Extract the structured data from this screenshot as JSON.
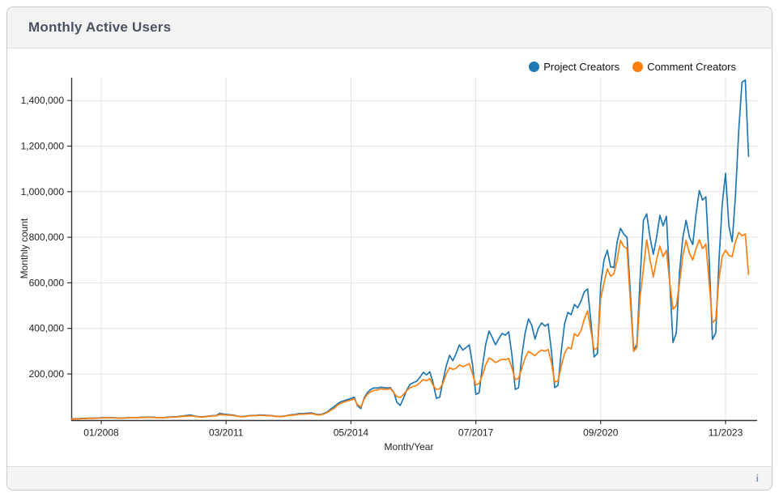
{
  "header": {
    "title": "Monthly Active Users"
  },
  "footer": {
    "info_icon": "i"
  },
  "colors": {
    "accent_blue": "#1f77b4",
    "accent_orange": "#ff7f0e",
    "grid": "#e2e2e2",
    "axis": "#333333",
    "title": "#4a5263",
    "header_bg": "#f3f3f3"
  },
  "chart_data": {
    "type": "line",
    "title": "Monthly Active Users",
    "xlabel": "Month/Year",
    "ylabel": "Monthly count",
    "grid": true,
    "legend_position": "top-right",
    "x_start_month": "2007-04",
    "x_end_month": "2024-06",
    "ylim": [
      0,
      1500000
    ],
    "x_ticks": [
      {
        "label": "01/2008",
        "month_index": 9
      },
      {
        "label": "03/2011",
        "month_index": 47
      },
      {
        "label": "05/2014",
        "month_index": 85
      },
      {
        "label": "07/2017",
        "month_index": 123
      },
      {
        "label": "09/2020",
        "month_index": 161
      },
      {
        "label": "11/2023",
        "month_index": 199
      }
    ],
    "y_ticks": [
      {
        "value": 200000,
        "label": "200,000"
      },
      {
        "value": 400000,
        "label": "400,000"
      },
      {
        "value": 600000,
        "label": "600,000"
      },
      {
        "value": 800000,
        "label": "800,000"
      },
      {
        "value": 1000000,
        "label": "1,000,000"
      },
      {
        "value": 1200000,
        "label": "1,200,000"
      },
      {
        "value": 1400000,
        "label": "1,400,000"
      }
    ],
    "series": [
      {
        "name": "Project Creators",
        "color": "#1f77b4",
        "values": [
          3000,
          4000,
          4000,
          5000,
          5000,
          6000,
          6000,
          7000,
          7000,
          8000,
          8000,
          9000,
          8000,
          8000,
          7000,
          7000,
          7000,
          8000,
          9000,
          9000,
          9000,
          10000,
          10000,
          11000,
          11000,
          10000,
          9000,
          9000,
          9000,
          10000,
          11000,
          12000,
          12000,
          15000,
          16000,
          18000,
          20000,
          17000,
          14000,
          12000,
          12000,
          14000,
          16000,
          17000,
          17000,
          27000,
          25000,
          23000,
          21000,
          20000,
          17000,
          14000,
          13000,
          15000,
          17000,
          18000,
          18000,
          20000,
          20000,
          19000,
          18000,
          17000,
          15000,
          14000,
          14000,
          16000,
          19000,
          21000,
          22000,
          26000,
          26000,
          27000,
          28000,
          29000,
          25000,
          22000,
          23000,
          28000,
          36000,
          48000,
          58000,
          70000,
          79000,
          83000,
          88000,
          92000,
          98000,
          60000,
          48000,
          95000,
          118000,
          132000,
          139000,
          138000,
          142000,
          140000,
          138000,
          140000,
          120000,
          75000,
          62000,
          95000,
          130000,
          155000,
          162000,
          168000,
          185000,
          207000,
          196000,
          210000,
          160000,
          93000,
          98000,
          170000,
          235000,
          282000,
          258000,
          290000,
          328000,
          305000,
          315000,
          328000,
          240000,
          110000,
          118000,
          235000,
          330000,
          388000,
          360000,
          328000,
          355000,
          378000,
          370000,
          385000,
          280000,
          132000,
          140000,
          280000,
          380000,
          441000,
          415000,
          353000,
          400000,
          424000,
          410000,
          420000,
          300000,
          140000,
          150000,
          300000,
          420000,
          470000,
          460000,
          505000,
          490000,
          520000,
          560000,
          573000,
          430000,
          275000,
          290000,
          590000,
          700000,
          743000,
          670000,
          667000,
          780000,
          839000,
          814000,
          800000,
          560000,
          306000,
          330000,
          620000,
          874000,
          903000,
          800000,
          725000,
          800000,
          896000,
          850000,
          892000,
          600000,
          338000,
          380000,
          650000,
          800000,
          874000,
          800000,
          768000,
          900000,
          1005000,
          963000,
          977000,
          700000,
          352000,
          380000,
          700000,
          950000,
          1080000,
          850000,
          780000,
          980000,
          1270000,
          1480000,
          1490000,
          1155000
        ]
      },
      {
        "name": "Comment Creators",
        "color": "#ff7f0e",
        "values": [
          2000,
          3000,
          3000,
          4000,
          4000,
          5000,
          5000,
          6000,
          6000,
          7000,
          7000,
          8000,
          7000,
          7000,
          6000,
          6000,
          6000,
          7000,
          8000,
          8000,
          8000,
          9000,
          9000,
          10000,
          10000,
          9000,
          8000,
          8000,
          8000,
          9000,
          10000,
          11000,
          11000,
          13000,
          14000,
          15000,
          16000,
          15000,
          13000,
          11000,
          11000,
          13000,
          15000,
          16000,
          16000,
          22000,
          21000,
          20000,
          19000,
          18000,
          16000,
          13000,
          12000,
          14000,
          16000,
          17000,
          17000,
          18000,
          18000,
          17000,
          17000,
          16000,
          14000,
          13000,
          13000,
          15000,
          18000,
          19000,
          20000,
          23000,
          23000,
          24000,
          25000,
          26000,
          23000,
          20000,
          21000,
          26000,
          33000,
          42000,
          50000,
          64000,
          72000,
          77000,
          82000,
          86000,
          91000,
          65000,
          55000,
          90000,
          110000,
          122000,
          128000,
          130000,
          135000,
          133000,
          132000,
          136000,
          118000,
          100000,
          97000,
          110000,
          128000,
          140000,
          145000,
          150000,
          162000,
          175000,
          170000,
          180000,
          150000,
          132000,
          135000,
          160000,
          200000,
          228000,
          220000,
          225000,
          240000,
          232000,
          238000,
          245000,
          200000,
          152000,
          158000,
          195000,
          240000,
          270000,
          262000,
          250000,
          258000,
          265000,
          262000,
          268000,
          225000,
          175000,
          180000,
          225000,
          270000,
          299000,
          290000,
          280000,
          295000,
          305000,
          300000,
          308000,
          250000,
          164000,
          170000,
          235000,
          290000,
          317000,
          310000,
          377000,
          365000,
          390000,
          440000,
          477000,
          390000,
          306000,
          315000,
          530000,
          600000,
          661000,
          629000,
          640000,
          700000,
          786000,
          760000,
          750000,
          520000,
          299000,
          315000,
          540000,
          661000,
          789000,
          700000,
          626000,
          700000,
          761000,
          715000,
          743000,
          600000,
          484000,
          500000,
          600000,
          720000,
          786000,
          730000,
          700000,
          750000,
          789000,
          750000,
          770000,
          600000,
          424000,
          440000,
          620000,
          718000,
          743000,
          720000,
          715000,
          780000,
          821000,
          807000,
          814000,
          637000
        ]
      }
    ]
  }
}
